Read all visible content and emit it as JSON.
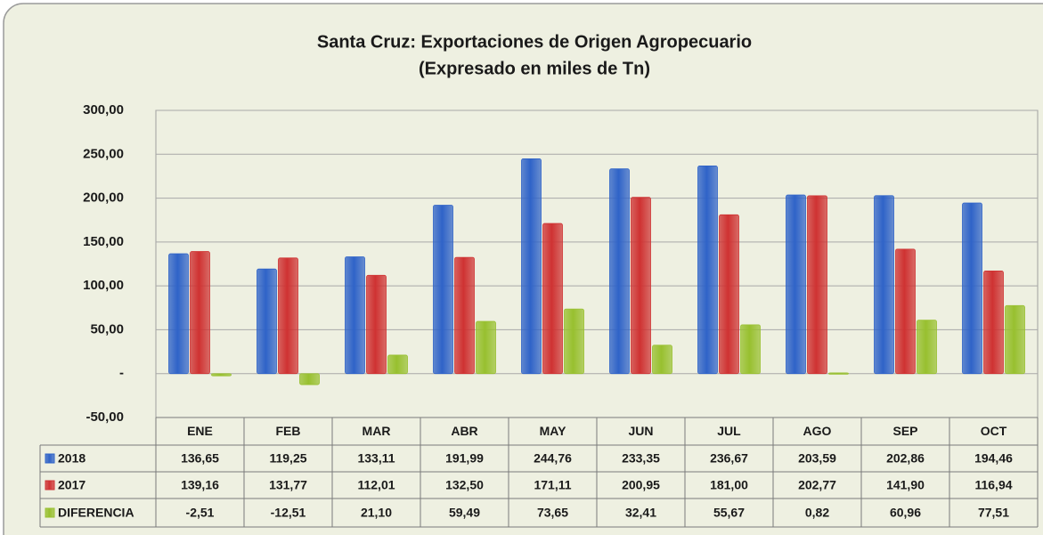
{
  "chart_data": {
    "type": "bar",
    "title": "Santa Cruz: Exportaciones de Origen Agropecuario",
    "subtitle": "(Expresado en miles de Tn)",
    "categories": [
      "ENE",
      "FEB",
      "MAR",
      "ABR",
      "MAY",
      "JUN",
      "JUL",
      "AGO",
      "SEP",
      "OCT"
    ],
    "series": [
      {
        "name": "2018",
        "color": "#2f63c8",
        "values": [
          136.65,
          119.25,
          133.11,
          191.99,
          244.76,
          233.35,
          236.67,
          203.59,
          202.86,
          194.46
        ],
        "value_labels": [
          "136,65",
          "119,25",
          "133,11",
          "191,99",
          "244,76",
          "233,35",
          "236,67",
          "203,59",
          "202,86",
          "194,46"
        ]
      },
      {
        "name": "2017",
        "color": "#cf3232",
        "values": [
          139.16,
          131.77,
          112.01,
          132.5,
          171.11,
          200.95,
          181.0,
          202.77,
          141.9,
          116.94
        ],
        "value_labels": [
          "139,16",
          "131,77",
          "112,01",
          "132,50",
          "171,11",
          "200,95",
          "181,00",
          "202,77",
          "141,90",
          "116,94"
        ]
      },
      {
        "name": "DIFERENCIA",
        "color": "#98c02f",
        "values": [
          -2.51,
          -12.51,
          21.1,
          59.49,
          73.65,
          32.41,
          55.67,
          0.82,
          60.96,
          77.51
        ],
        "value_labels": [
          "-2,51",
          "-12,51",
          "21,10",
          "59,49",
          "73,65",
          "32,41",
          "55,67",
          "0,82",
          "60,96",
          "77,51"
        ]
      }
    ],
    "ylim": [
      -50,
      300
    ],
    "yticks": [
      {
        "value": -50,
        "label": "-50,00"
      },
      {
        "value": 0,
        "label": "-"
      },
      {
        "value": 50,
        "label": "50,00"
      },
      {
        "value": 100,
        "label": "100,00"
      },
      {
        "value": 150,
        "label": "150,00"
      },
      {
        "value": 200,
        "label": "200,00"
      },
      {
        "value": 250,
        "label": "250,00"
      },
      {
        "value": 300,
        "label": "300,00"
      }
    ],
    "grid": true
  }
}
